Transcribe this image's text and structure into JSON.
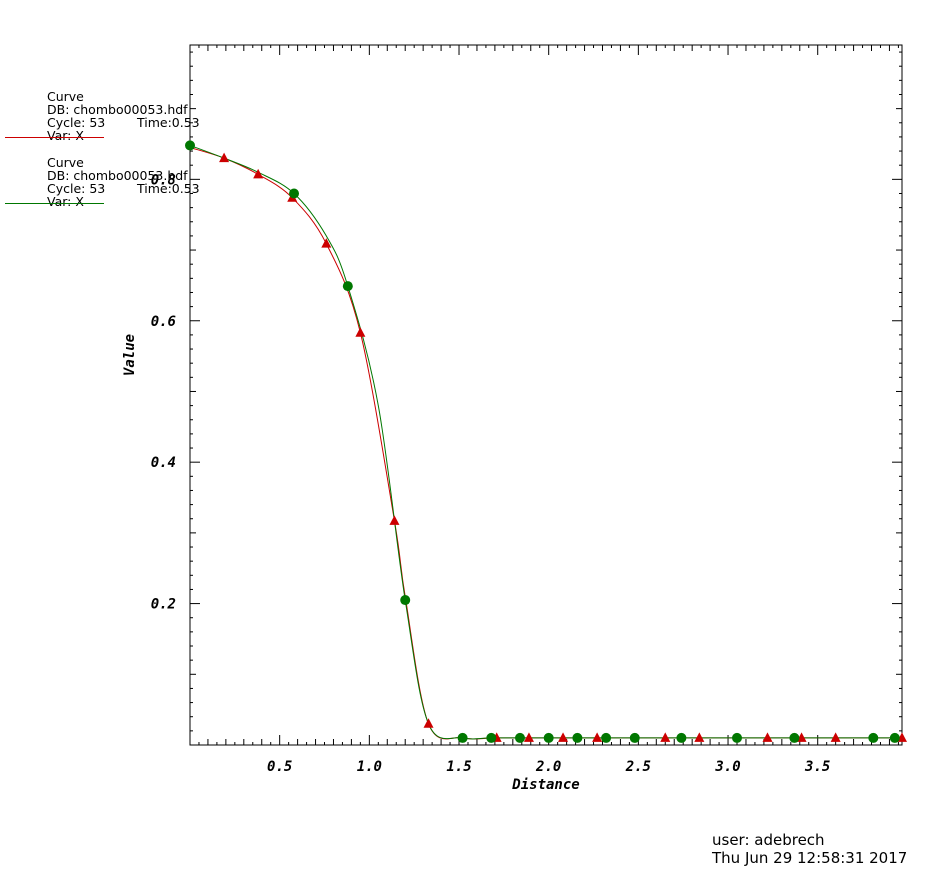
{
  "chart_data": {
    "type": "line",
    "xlabel": "Distance",
    "ylabel": "Value",
    "xlim": [
      0.0,
      3.97
    ],
    "ylim": [
      0.0,
      0.99
    ],
    "x_ticks": [
      "0.5",
      "1.0",
      "1.5",
      "2.0",
      "2.5",
      "3.0",
      "3.5"
    ],
    "x_tick_values": [
      0.5,
      1.0,
      1.5,
      2.0,
      2.5,
      3.0,
      3.5
    ],
    "y_ticks": [
      "0.2",
      "0.4",
      "0.6",
      "0.8"
    ],
    "y_tick_values": [
      0.2,
      0.4,
      0.6,
      0.8
    ],
    "series": [
      {
        "color": "#cc0000",
        "marker": "triangle",
        "x": [
          0.0,
          0.19,
          0.38,
          0.57,
          0.76,
          0.95,
          1.14,
          1.2,
          1.33,
          1.52,
          1.71,
          1.89,
          2.08,
          2.27,
          2.46,
          2.65,
          2.84,
          3.03,
          3.22,
          3.41,
          3.6,
          3.79,
          3.97
        ],
        "y": [
          0.845,
          0.83,
          0.807,
          0.774,
          0.709,
          0.583,
          0.317,
          0.21,
          0.03,
          0.01,
          0.01,
          0.01,
          0.01,
          0.01,
          0.01,
          0.01,
          0.01,
          0.01,
          0.01,
          0.01,
          0.01,
          0.01,
          0.01
        ],
        "markers_x": [
          0.19,
          0.38,
          0.57,
          0.76,
          0.95,
          1.14,
          1.33,
          1.71,
          1.89,
          2.08,
          2.27,
          2.65,
          2.84,
          3.22,
          3.41,
          3.6,
          3.97
        ],
        "markers_y": [
          0.83,
          0.807,
          0.774,
          0.709,
          0.583,
          0.317,
          0.03,
          0.01,
          0.01,
          0.01,
          0.01,
          0.01,
          0.01,
          0.01,
          0.01,
          0.01,
          0.01
        ]
      },
      {
        "color": "#007700",
        "marker": "circle",
        "x": [
          0.0,
          0.19,
          0.38,
          0.58,
          0.76,
          0.88,
          1.05,
          1.2,
          1.33,
          1.52,
          1.68,
          1.84,
          2.0,
          2.16,
          2.32,
          2.48,
          2.74,
          3.05,
          3.37,
          3.81,
          3.93,
          3.97
        ],
        "y": [
          0.848,
          0.83,
          0.81,
          0.78,
          0.72,
          0.649,
          0.48,
          0.205,
          0.03,
          0.01,
          0.01,
          0.01,
          0.01,
          0.01,
          0.01,
          0.01,
          0.01,
          0.01,
          0.01,
          0.01,
          0.01,
          0.01
        ],
        "markers_x": [
          0.0,
          0.58,
          0.88,
          1.2,
          1.52,
          1.68,
          1.84,
          2.0,
          2.16,
          2.32,
          2.48,
          2.74,
          3.05,
          3.37,
          3.81,
          3.93
        ],
        "markers_y": [
          0.848,
          0.78,
          0.649,
          0.205,
          0.01,
          0.01,
          0.01,
          0.01,
          0.01,
          0.01,
          0.01,
          0.01,
          0.01,
          0.01,
          0.01,
          0.01
        ]
      }
    ]
  },
  "legend": [
    {
      "line1": "Curve",
      "line2": "DB: chombo00053.hdf",
      "line3_cycle": "Cycle: 53",
      "line3_time": "Time:0.53",
      "line4": "Var: X",
      "color": "#cc0000"
    },
    {
      "line1": "Curve",
      "line2": "DB: chombo00053.hdf",
      "line3_cycle": "Cycle: 53",
      "line3_time": "Time:0.53",
      "line4": "Var: X",
      "color": "#007700"
    }
  ],
  "user_info": {
    "user": "user: adebrech",
    "timestamp": "Thu Jun 29 12:58:31 2017"
  }
}
